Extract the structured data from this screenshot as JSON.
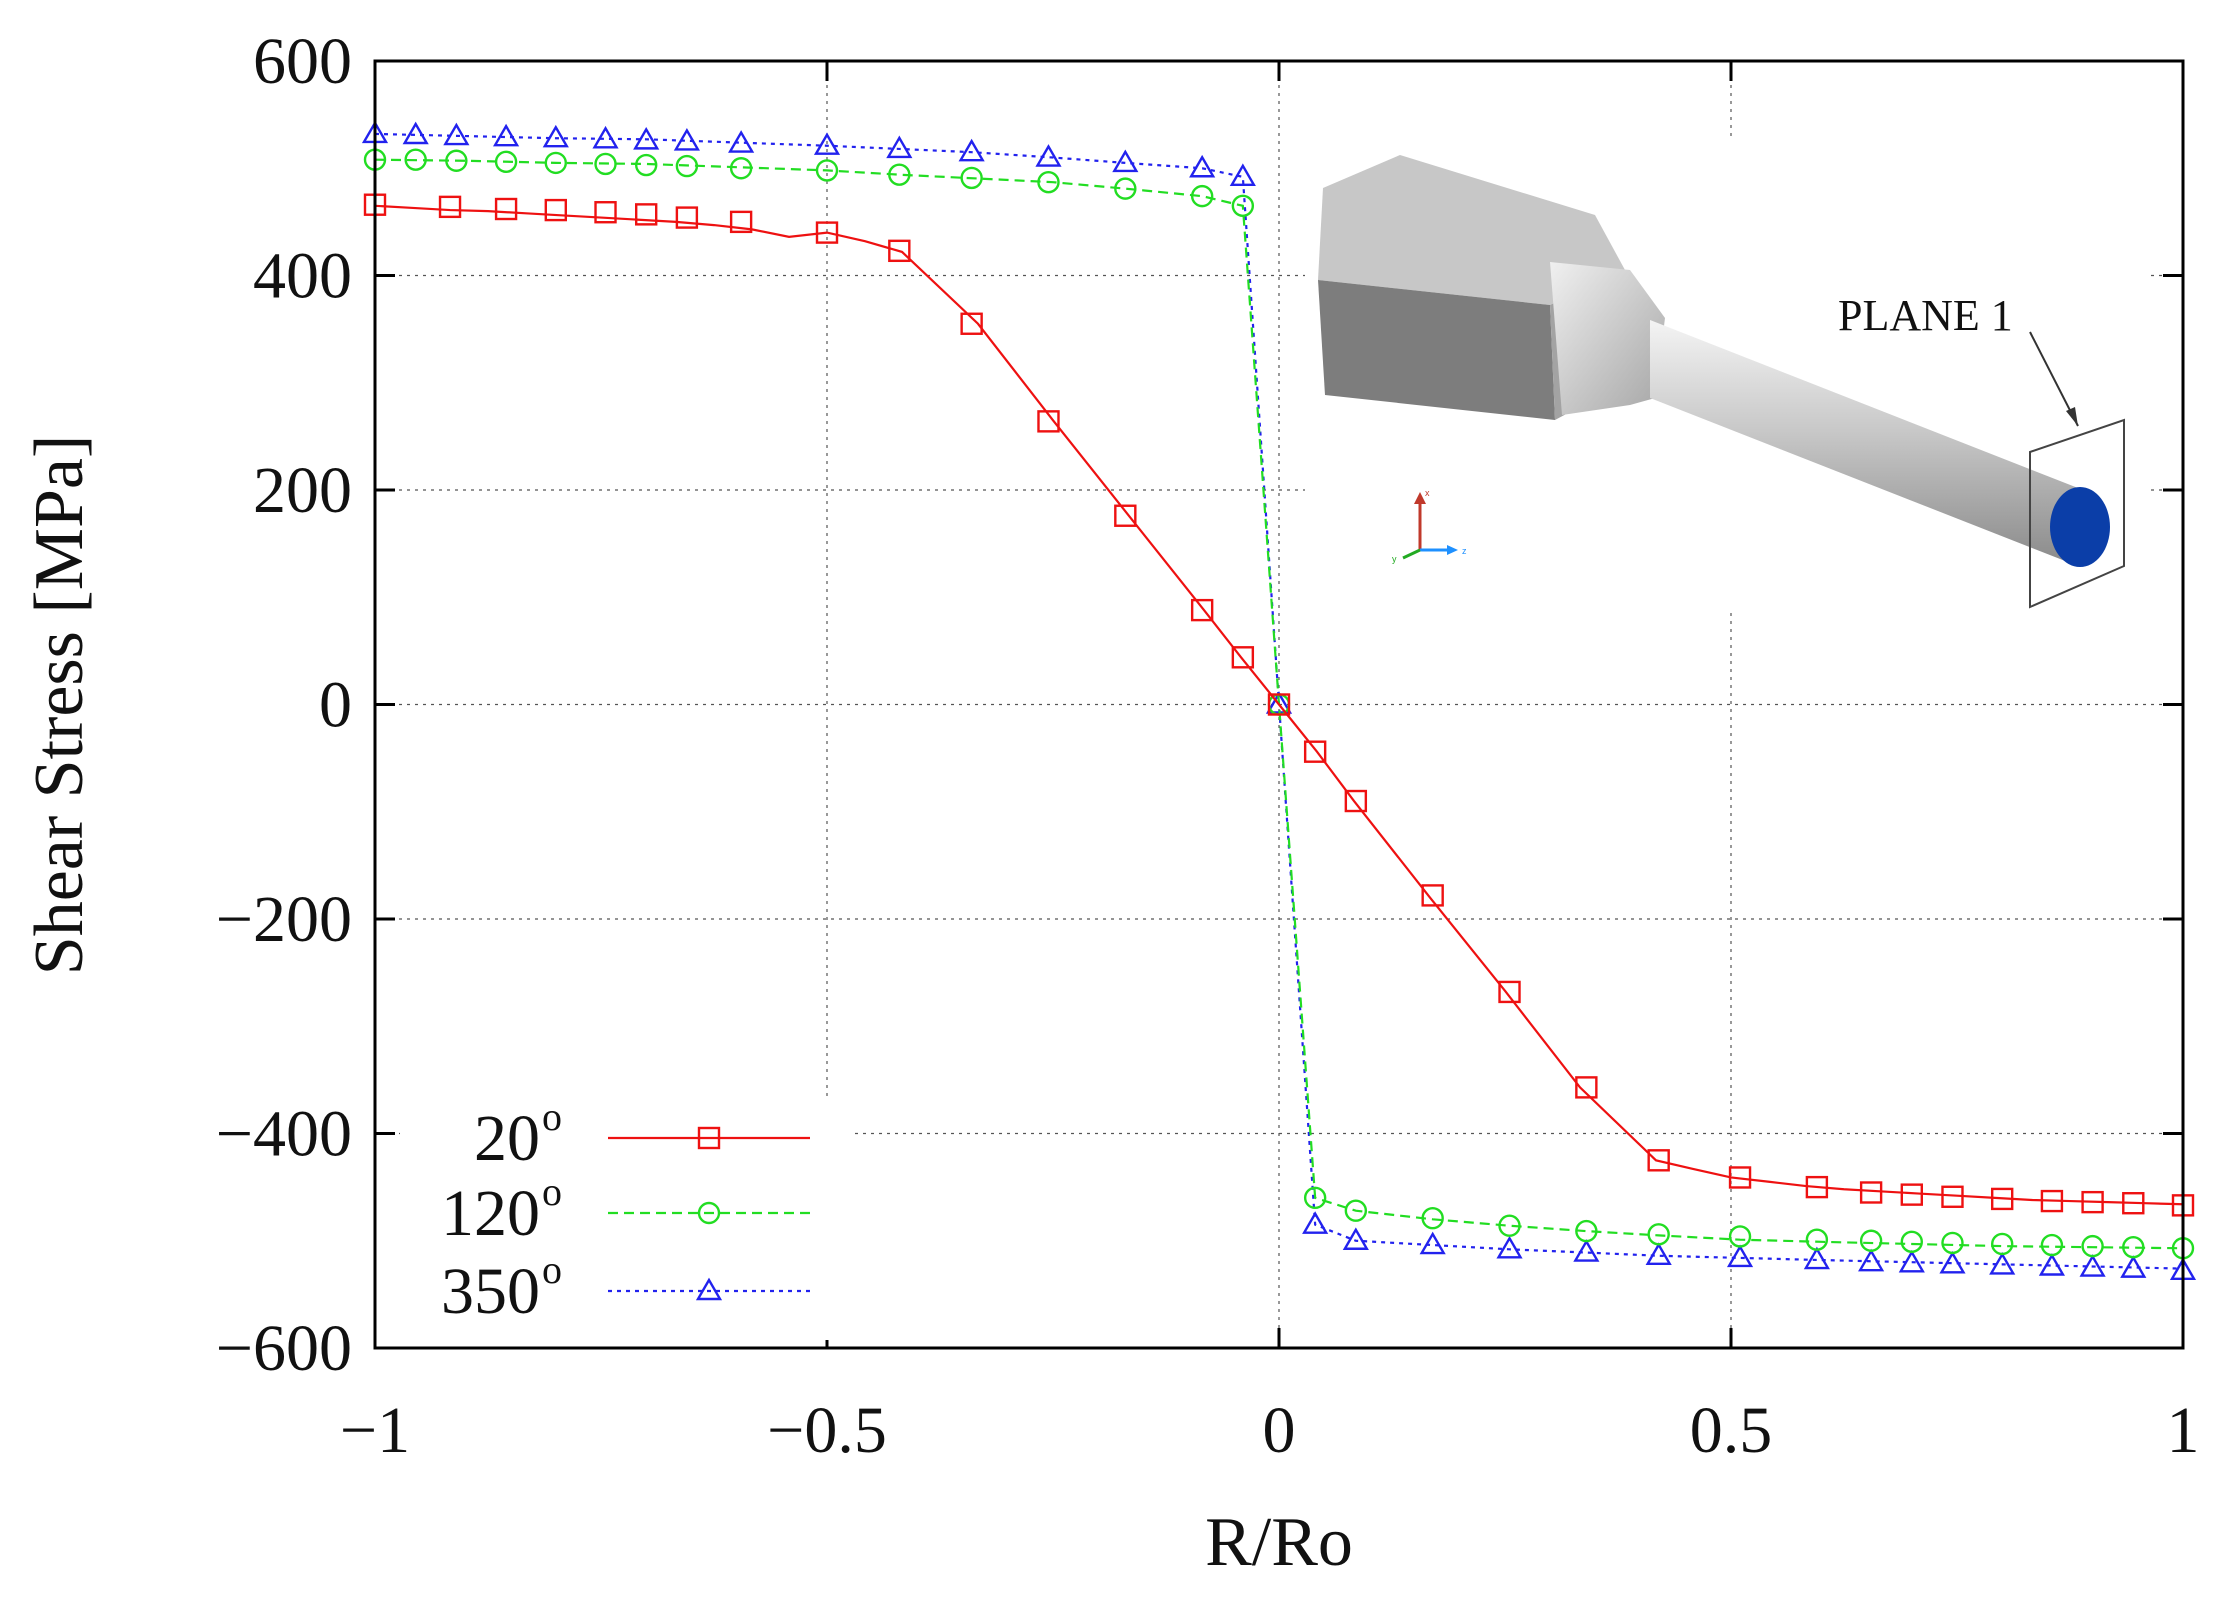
{
  "chart_data": {
    "type": "line",
    "title": "",
    "xlabel": "R/Ro",
    "ylabel": "Shear Stress [MPa]",
    "xlim": [
      -1,
      1
    ],
    "ylim": [
      -600,
      600
    ],
    "x_ticks": [
      -1,
      -0.5,
      0,
      0.5,
      1
    ],
    "x_tick_labels": [
      "−1",
      "−0.5",
      "0",
      "0.5",
      "1"
    ],
    "y_ticks": [
      600,
      400,
      200,
      0,
      -200,
      -400,
      -600
    ],
    "y_tick_labels": [
      "600",
      "400",
      "200",
      "0",
      "−200",
      "−400",
      "−600"
    ],
    "grid": true,
    "legend_position": "bottom-left",
    "series": [
      {
        "name": "20",
        "name_sup": "o",
        "color": "#ee1111",
        "line_style": "solid",
        "marker": "square",
        "x": [
          -1,
          -0.958,
          -0.917,
          -0.875,
          -0.833,
          -0.792,
          -0.75,
          -0.708,
          -0.667,
          -0.625,
          -0.583,
          -0.542,
          -0.5,
          -0.458,
          -0.417,
          -0.333,
          -0.25,
          -0.167,
          -0.083,
          -0.042,
          0,
          0.042,
          0.083,
          0.167,
          0.25,
          0.333,
          0.417,
          0.458,
          0.5,
          0.542,
          0.583,
          0.625,
          0.667,
          0.708,
          0.75,
          0.792,
          0.833,
          0.875,
          0.917,
          0.958,
          1
        ],
        "y": [
          465,
          463,
          461,
          460,
          458,
          456,
          454,
          452,
          450,
          447,
          443,
          436,
          440,
          432,
          422,
          355,
          265,
          177,
          88,
          44,
          0,
          -44,
          -90,
          -180,
          -267,
          -357,
          -425,
          -433,
          -441,
          -445,
          -449,
          -452,
          -454,
          -456,
          -458,
          -460,
          -462,
          -463,
          -464,
          -465,
          -466
        ],
        "marker_x": [
          -1,
          -0.917,
          -0.855,
          -0.8,
          -0.745,
          -0.7,
          -0.655,
          -0.595,
          -0.5,
          -0.42,
          -0.34,
          -0.255,
          -0.17,
          -0.085,
          -0.04,
          0,
          0.04,
          0.085,
          0.17,
          0.255,
          0.34,
          0.42,
          0.51,
          0.595,
          0.655,
          0.7,
          0.745,
          0.8,
          0.855,
          0.9,
          0.945,
          1
        ],
        "marker_y": [
          466,
          464,
          462,
          461,
          459,
          457,
          454,
          450,
          440,
          423,
          355,
          264,
          176,
          88,
          44,
          0,
          -44,
          -90,
          -178,
          -268,
          -357,
          -425,
          -441,
          -450,
          -455,
          -457,
          -459,
          -461,
          -463,
          -464,
          -465,
          -467
        ]
      },
      {
        "name": "120",
        "name_sup": "o",
        "color": "#22dd22",
        "line_style": "dashed",
        "marker": "circle",
        "x": [
          -1,
          -0.9,
          -0.8,
          -0.7,
          -0.6,
          -0.5,
          -0.42,
          -0.25,
          -0.17,
          -0.085,
          -0.04,
          0,
          0.04,
          0.085,
          0.17,
          0.255,
          0.34,
          0.42,
          0.51,
          0.6,
          0.7,
          0.8,
          0.9,
          1
        ],
        "y": [
          508,
          507,
          505,
          504,
          501,
          498,
          494,
          487,
          481,
          474,
          465,
          0,
          -460,
          -472,
          -480,
          -486,
          -491,
          -495,
          -499,
          -501,
          -503,
          -505,
          -506,
          -507
        ],
        "marker_x": [
          -1,
          -0.955,
          -0.91,
          -0.855,
          -0.8,
          -0.745,
          -0.7,
          -0.655,
          -0.595,
          -0.5,
          -0.42,
          -0.34,
          -0.255,
          -0.17,
          -0.085,
          -0.04,
          0,
          0.04,
          0.085,
          0.17,
          0.255,
          0.34,
          0.42,
          0.51,
          0.595,
          0.655,
          0.7,
          0.745,
          0.8,
          0.855,
          0.9,
          0.945,
          1
        ],
        "marker_y": [
          508,
          508,
          507,
          506,
          505,
          504,
          503,
          502,
          500,
          498,
          494,
          491,
          487,
          481,
          474,
          465,
          0,
          -460,
          -472,
          -479,
          -486,
          -491,
          -494,
          -496,
          -499,
          -500,
          -501,
          -502,
          -503,
          -504,
          -505,
          -506,
          -507
        ]
      },
      {
        "name": "350",
        "name_sup": "o",
        "color": "#2222ee",
        "line_style": "dotted",
        "marker": "triangle",
        "x": [
          -1,
          -0.9,
          -0.8,
          -0.7,
          -0.6,
          -0.5,
          -0.42,
          -0.34,
          -0.25,
          -0.17,
          -0.085,
          -0.04,
          0,
          0.04,
          0.085,
          0.17,
          0.255,
          0.34,
          0.42,
          0.51,
          0.6,
          0.7,
          0.8,
          0.9,
          1
        ],
        "y": [
          532,
          530,
          528,
          527,
          524,
          521,
          518,
          515,
          510,
          505,
          500,
          492,
          0,
          -485,
          -500,
          -504,
          -508,
          -511,
          -514,
          -516,
          -518,
          -520,
          -522,
          -524,
          -526
        ],
        "marker_x": [
          -1,
          -0.955,
          -0.91,
          -0.855,
          -0.8,
          -0.745,
          -0.7,
          -0.655,
          -0.595,
          -0.5,
          -0.42,
          -0.34,
          -0.255,
          -0.17,
          -0.085,
          -0.04,
          0,
          0.04,
          0.085,
          0.17,
          0.255,
          0.34,
          0.42,
          0.51,
          0.595,
          0.655,
          0.7,
          0.745,
          0.8,
          0.855,
          0.9,
          0.945,
          1
        ],
        "marker_y": [
          532,
          531,
          530,
          529,
          528,
          527,
          526,
          525,
          523,
          521,
          518,
          515,
          510,
          505,
          500,
          492,
          0,
          -485,
          -500,
          -504,
          -508,
          -511,
          -514,
          -516,
          -518,
          -520,
          -521,
          -522,
          -523,
          -524,
          -525,
          -526,
          -528
        ]
      }
    ],
    "inset": {
      "annotation": "PLANE 1",
      "axis_triad_labels": [
        "x",
        "y",
        "z"
      ]
    }
  }
}
